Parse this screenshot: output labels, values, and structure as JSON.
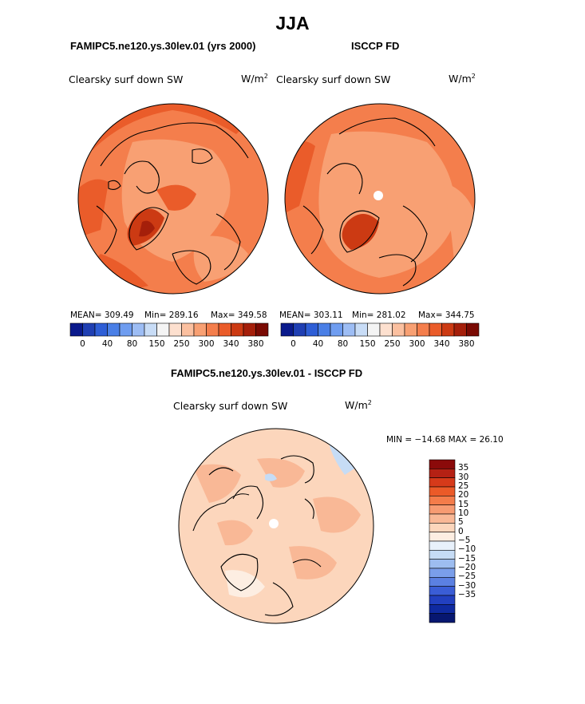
{
  "title": "JJA",
  "panels": {
    "left": {
      "title": "FAMIPC5.ne120.ys.30lev.01 (yrs 2000)",
      "variable": "Clearsky surf down SW",
      "units_base": "W/m",
      "units_exp": "2",
      "stats": {
        "mean": "MEAN= 309.49",
        "min": "Min= 289.16",
        "max": "Max= 349.58"
      }
    },
    "right": {
      "title": "ISCCP FD",
      "variable": "Clearsky surf down SW",
      "units_base": "W/m",
      "units_exp": "2",
      "stats": {
        "mean": "MEAN= 303.11",
        "min": "Min= 281.02",
        "max": "Max= 344.75"
      }
    },
    "diff": {
      "title": "FAMIPC5.ne120.ys.30lev.01 - ISCCP FD",
      "variable": "Clearsky surf down SW",
      "units_base": "W/m",
      "units_exp": "2",
      "minmax": "MIN = −14.68 MAX =  26.10"
    }
  },
  "colorbar_top": {
    "colors": [
      "#0a1a8c",
      "#1f3fb3",
      "#2e5ed6",
      "#4a7fe6",
      "#6f9df0",
      "#9dbdf4",
      "#c8dcf6",
      "#f4f4f4",
      "#fde0cf",
      "#fbc0a0",
      "#f8a073",
      "#f47e4c",
      "#ea5c2a",
      "#cc3a13",
      "#a51f0a",
      "#7a0a03"
    ],
    "tick_labels": [
      "0",
      "40",
      "80",
      "150",
      "250",
      "300",
      "340",
      "380"
    ]
  },
  "colorbar_diff": {
    "colors": [
      "#8b0a0a",
      "#b52114",
      "#d63a1a",
      "#eb5a28",
      "#f47c4a",
      "#f79b72",
      "#f9b896",
      "#fcd6bc",
      "#fdeee2",
      "#e8f1fb",
      "#c6dcf5",
      "#9dbdf0",
      "#7a9eea",
      "#5b80e2",
      "#3a5dd6",
      "#2240c0",
      "#0f2aa0",
      "#071770"
    ],
    "tick_labels": [
      "35",
      "30",
      "25",
      "20",
      "15",
      "10",
      "5",
      "0",
      "−5",
      "−10",
      "−15",
      "−20",
      "−25",
      "−30",
      "−35"
    ]
  }
}
